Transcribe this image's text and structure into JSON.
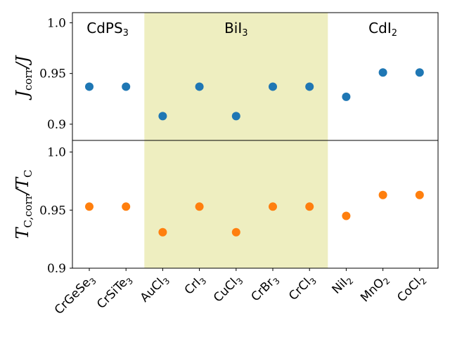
{
  "chart_data": {
    "type": "scatter",
    "categories": [
      "CrGeSe3",
      "CrSiTe3",
      "AuCl3",
      "CrI3",
      "CuCl3",
      "CrBr3",
      "CrCl3",
      "NiI2",
      "MnO2",
      "CoCl2"
    ],
    "category_labels": [
      {
        "base": "CrGeSe",
        "sub": "3"
      },
      {
        "base": "CrSiTe",
        "sub": "3"
      },
      {
        "base": "AuCl",
        "sub": "3"
      },
      {
        "base": "CrI",
        "sub": "3"
      },
      {
        "base": "CuCl",
        "sub": "3"
      },
      {
        "base": "CrBr",
        "sub": "3"
      },
      {
        "base": "CrCl",
        "sub": "3"
      },
      {
        "base": "NiI",
        "sub": "2"
      },
      {
        "base": "MnO",
        "sub": "2"
      },
      {
        "base": "CoCl",
        "sub": "2"
      }
    ],
    "regions": [
      {
        "base": "CdPS",
        "sub": "3",
        "from_index": 0,
        "to_index": 1,
        "shaded": false
      },
      {
        "base": "BiI",
        "sub": "3",
        "from_index": 2,
        "to_index": 6,
        "shaded": true,
        "color": "#eeeec0"
      },
      {
        "base": "CdI",
        "sub": "2",
        "from_index": 7,
        "to_index": 9,
        "shaded": false
      }
    ],
    "panels": [
      {
        "name": "top",
        "ylabel_main": "J",
        "ylabel_sub": "corr",
        "ylabel_den": "J",
        "ylim": [
          0.884,
          1.01
        ],
        "yticks": [
          0.9,
          0.95,
          1.0
        ],
        "ytick_labels": [
          "0.9",
          "0.95",
          "1.0"
        ],
        "color": "#1f77b4",
        "values": [
          0.937,
          0.937,
          0.908,
          0.937,
          0.908,
          0.937,
          0.937,
          0.927,
          0.951,
          0.951
        ]
      },
      {
        "name": "bottom",
        "ylabel_main": "T",
        "ylabel_sub": "C,corr",
        "ylabel_den": "T",
        "ylabel_den_sub": "C",
        "ylim": [
          0.9,
          1.01
        ],
        "yticks": [
          0.9,
          0.95,
          1.0
        ],
        "ytick_labels": [
          "0.9",
          "0.95",
          "1.0"
        ],
        "color": "#ff7f0e",
        "values": [
          0.953,
          0.953,
          0.931,
          0.953,
          0.931,
          0.953,
          0.953,
          0.945,
          0.963,
          0.963
        ]
      }
    ],
    "xlabel": "",
    "grid": false,
    "legend": "none"
  }
}
